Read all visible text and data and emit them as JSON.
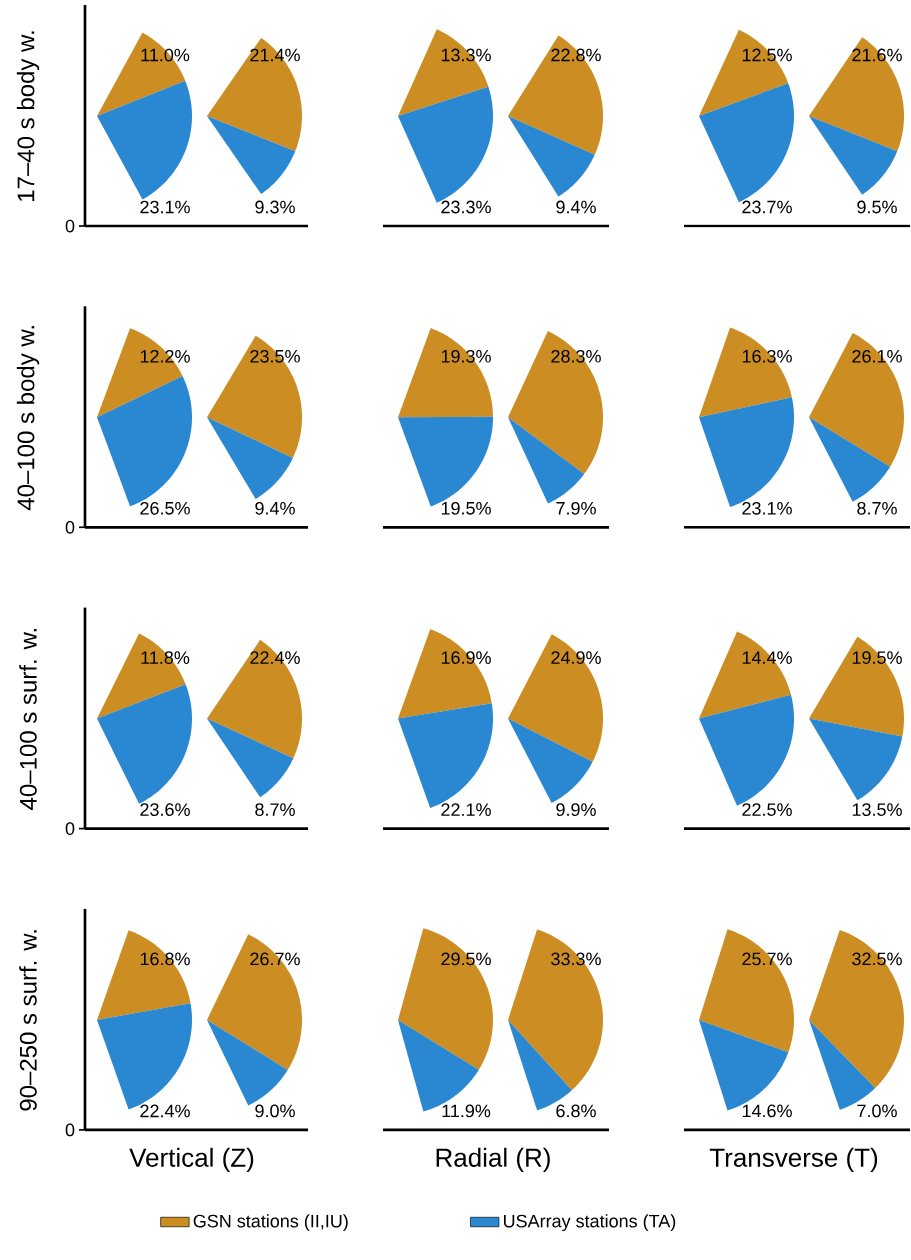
{
  "chart_data": [
    {
      "type": "pie",
      "categories": [
        "GSN stations (II,IU)",
        "USArray stations (TA)"
      ],
      "values": [
        11.0,
        23.1
      ],
      "colors": [
        "#cc8d22",
        "#2a87d2"
      ],
      "value_labels": [
        "11.0%",
        "23.1%"
      ],
      "ylabel": "17–40 s body w.",
      "annotations": [
        "0"
      ],
      "legend": "bottom"
    },
    {
      "type": "pie",
      "categories": [
        null,
        null
      ],
      "values": [
        21.4,
        9.3
      ],
      "colors": [
        "#cc8d22",
        "#2a87d2"
      ],
      "value_labels": [
        "21.4%",
        "9.3%"
      ]
    },
    {
      "type": "pie",
      "categories": [
        null,
        null
      ],
      "values": [
        13.3,
        23.3
      ],
      "colors": [
        "#cc8d22",
        "#2a87d2"
      ],
      "value_labels": [
        "13.3%",
        "23.3%"
      ]
    },
    {
      "type": "pie",
      "categories": [
        null,
        null
      ],
      "values": [
        22.8,
        9.4
      ],
      "colors": [
        "#cc8d22",
        "#2a87d2"
      ],
      "value_labels": [
        "22.8%",
        "9.4%"
      ]
    },
    {
      "type": "pie",
      "categories": [
        null,
        null
      ],
      "values": [
        12.5,
        23.7
      ],
      "colors": [
        "#cc8d22",
        "#2a87d2"
      ],
      "value_labels": [
        "12.5%",
        "23.7%"
      ]
    },
    {
      "type": "pie",
      "categories": [
        null,
        null
      ],
      "values": [
        21.6,
        9.5
      ],
      "colors": [
        "#cc8d22",
        "#2a87d2"
      ],
      "value_labels": [
        "21.6%",
        "9.5%"
      ]
    },
    {
      "type": "pie",
      "categories": [
        null,
        null
      ],
      "values": [
        12.2,
        26.5
      ],
      "colors": [
        "#cc8d22",
        "#2a87d2"
      ],
      "value_labels": [
        "12.2%",
        "26.5%"
      ],
      "ylabel": "40–100 s body w.",
      "annotations": [
        "0"
      ]
    },
    {
      "type": "pie",
      "categories": [
        null,
        null
      ],
      "values": [
        23.5,
        9.4
      ],
      "colors": [
        "#cc8d22",
        "#2a87d2"
      ],
      "value_labels": [
        "23.5%",
        "9.4%"
      ]
    },
    {
      "type": "pie",
      "categories": [
        null,
        null
      ],
      "values": [
        19.3,
        19.5
      ],
      "colors": [
        "#cc8d22",
        "#2a87d2"
      ],
      "value_labels": [
        "19.3%",
        "19.5%"
      ]
    },
    {
      "type": "pie",
      "categories": [
        null,
        null
      ],
      "values": [
        28.3,
        7.9
      ],
      "colors": [
        "#cc8d22",
        "#2a87d2"
      ],
      "value_labels": [
        "28.3%",
        "7.9%"
      ]
    },
    {
      "type": "pie",
      "categories": [
        null,
        null
      ],
      "values": [
        16.3,
        23.1
      ],
      "colors": [
        "#cc8d22",
        "#2a87d2"
      ],
      "value_labels": [
        "16.3%",
        "23.1%"
      ]
    },
    {
      "type": "pie",
      "categories": [
        null,
        null
      ],
      "values": [
        26.1,
        8.7
      ],
      "colors": [
        "#cc8d22",
        "#2a87d2"
      ],
      "value_labels": [
        "26.1%",
        "8.7%"
      ]
    },
    {
      "type": "pie",
      "categories": [
        null,
        null
      ],
      "values": [
        11.8,
        23.6
      ],
      "colors": [
        "#cc8d22",
        "#2a87d2"
      ],
      "value_labels": [
        "11.8%",
        "23.6%"
      ],
      "ylabel": "40–100 s surf. w.",
      "annotations": [
        "0"
      ]
    },
    {
      "type": "pie",
      "categories": [
        null,
        null
      ],
      "values": [
        22.4,
        8.7
      ],
      "colors": [
        "#cc8d22",
        "#2a87d2"
      ],
      "value_labels": [
        "22.4%",
        "8.7%"
      ]
    },
    {
      "type": "pie",
      "categories": [
        null,
        null
      ],
      "values": [
        16.9,
        22.1
      ],
      "colors": [
        "#cc8d22",
        "#2a87d2"
      ],
      "value_labels": [
        "16.9%",
        "22.1%"
      ]
    },
    {
      "type": "pie",
      "categories": [
        null,
        null
      ],
      "values": [
        24.9,
        9.9
      ],
      "colors": [
        "#cc8d22",
        "#2a87d2"
      ],
      "value_labels": [
        "24.9%",
        "9.9%"
      ]
    },
    {
      "type": "pie",
      "categories": [
        null,
        null
      ],
      "values": [
        14.4,
        22.5
      ],
      "colors": [
        "#cc8d22",
        "#2a87d2"
      ],
      "value_labels": [
        "14.4%",
        "22.5%"
      ]
    },
    {
      "type": "pie",
      "categories": [
        null,
        null
      ],
      "values": [
        19.5,
        13.5
      ],
      "colors": [
        "#cc8d22",
        "#2a87d2"
      ],
      "value_labels": [
        "19.5%",
        "13.5%"
      ]
    },
    {
      "type": "pie",
      "categories": [
        null,
        null
      ],
      "values": [
        16.8,
        22.4
      ],
      "colors": [
        "#cc8d22",
        "#2a87d2"
      ],
      "value_labels": [
        "16.8%",
        "22.4%"
      ],
      "ylabel": "90–250 s surf. w.",
      "annotations": [
        "0"
      ],
      "xlabel": "Vertical (Z)"
    },
    {
      "type": "pie",
      "categories": [
        null,
        null
      ],
      "values": [
        26.7,
        9.0
      ],
      "colors": [
        "#cc8d22",
        "#2a87d2"
      ],
      "value_labels": [
        "26.7%",
        "9.0%"
      ]
    },
    {
      "type": "pie",
      "categories": [
        null,
        null
      ],
      "values": [
        29.5,
        11.9
      ],
      "colors": [
        "#cc8d22",
        "#2a87d2"
      ],
      "value_labels": [
        "29.5%",
        "11.9%"
      ],
      "xlabel": "Radial (R)"
    },
    {
      "type": "pie",
      "categories": [
        null,
        null
      ],
      "values": [
        33.3,
        6.8
      ],
      "colors": [
        "#cc8d22",
        "#2a87d2"
      ],
      "value_labels": [
        "33.3%",
        "6.8%"
      ]
    },
    {
      "type": "pie",
      "categories": [
        null,
        null
      ],
      "values": [
        25.7,
        14.6
      ],
      "colors": [
        "#cc8d22",
        "#2a87d2"
      ],
      "value_labels": [
        "25.7%",
        "14.6%"
      ],
      "xlabel": "Transverse (T)"
    },
    {
      "type": "pie",
      "categories": [
        null,
        null
      ],
      "values": [
        32.5,
        7.0
      ],
      "colors": [
        "#cc8d22",
        "#2a87d2"
      ],
      "value_labels": [
        "32.5%",
        "7.0%"
      ]
    }
  ]
}
